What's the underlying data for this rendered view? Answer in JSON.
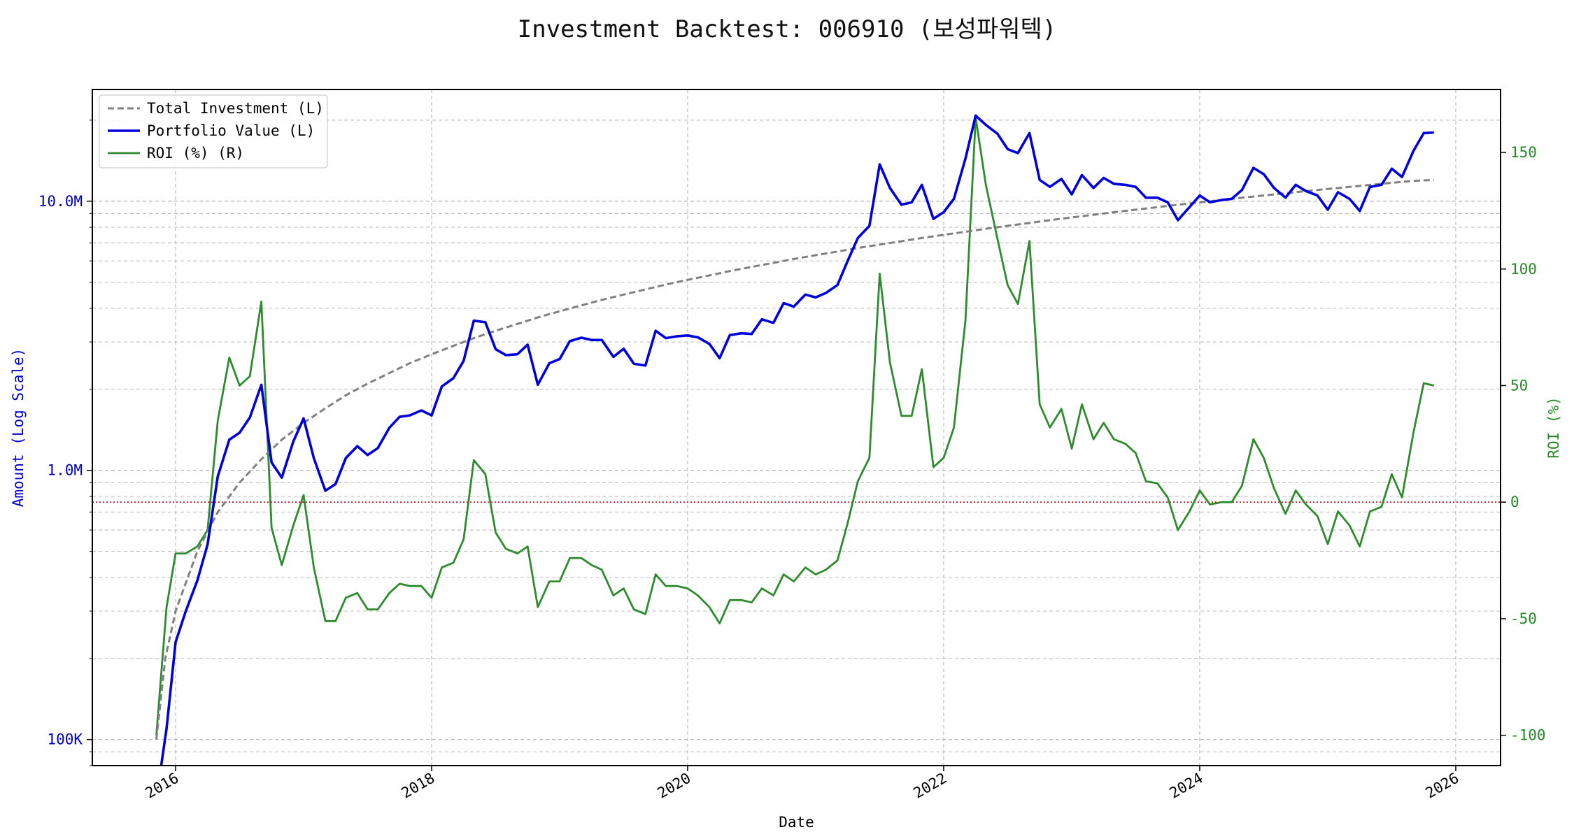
{
  "chart_data": {
    "type": "line",
    "title": "Investment Backtest: 006910 (보성파워텍)",
    "xlabel": "Date",
    "ylabel_left": "Amount (Log Scale)",
    "ylabel_right": "ROI (%)",
    "x_ticks": [
      "2016",
      "2018",
      "2020",
      "2022",
      "2024",
      "2026"
    ],
    "y_left_ticks": [
      {
        "value": 100000,
        "label": "100K"
      },
      {
        "value": 1000000,
        "label": "1.0M"
      },
      {
        "value": 10000000,
        "label": "10.0M"
      }
    ],
    "y_right_ticks": [
      -100,
      -50,
      0,
      50,
      100,
      150
    ],
    "y_left_scale": "log",
    "ylim_left": [
      80000,
      26000000
    ],
    "ylim_right": [
      -113,
      177
    ],
    "xlim": [
      2015.35,
      2026.35
    ],
    "grid": true,
    "legend_position": "top-left",
    "legend": [
      {
        "label": "Total Investment (L)",
        "color": "#808080",
        "style": "dashed"
      },
      {
        "label": "Portfolio Value (L)",
        "color": "#0000dd",
        "style": "solid"
      },
      {
        "label": "ROI (%) (R)",
        "color": "#2e8b2e",
        "style": "solid"
      }
    ],
    "reference_line": {
      "axis": "right",
      "value": 0,
      "color": "#cc0000",
      "style": "dotted"
    },
    "colors": {
      "left_axis": "#0000cc",
      "right_axis": "#228b22"
    },
    "series": [
      {
        "name": "Total Investment (L)",
        "axis": "left",
        "x": [
          2015.85,
          2015.92,
          2016.0,
          2016.17,
          2016.33,
          2016.5,
          2016.67,
          2016.83,
          2017.0,
          2017.17,
          2017.33,
          2017.5,
          2017.67,
          2017.83,
          2018.0,
          2018.17,
          2018.33,
          2018.5,
          2018.67,
          2018.83,
          2019.0,
          2019.17,
          2019.33,
          2019.5,
          2019.67,
          2019.83,
          2020.0,
          2020.17,
          2020.33,
          2020.5,
          2020.67,
          2020.83,
          2021.0,
          2021.17,
          2021.33,
          2021.5,
          2021.67,
          2021.83,
          2022.0,
          2022.17,
          2022.33,
          2022.5,
          2022.67,
          2022.83,
          2023.0,
          2023.17,
          2023.33,
          2023.5,
          2023.67,
          2023.83,
          2024.0,
          2024.17,
          2024.33,
          2024.5,
          2024.67,
          2024.83,
          2025.0,
          2025.17,
          2025.33,
          2025.5,
          2025.67,
          2025.83
        ],
        "values": [
          100000,
          200000,
          300000,
          500000,
          700000,
          900000,
          1100000,
          1300000,
          1500000,
          1700000,
          1900000,
          2100000,
          2300000,
          2500000,
          2700000,
          2900000,
          3100000,
          3300000,
          3500000,
          3700000,
          3900000,
          4100000,
          4300000,
          4500000,
          4700000,
          4900000,
          5100000,
          5300000,
          5500000,
          5700000,
          5900000,
          6100000,
          6300000,
          6500000,
          6700000,
          6900000,
          7100000,
          7300000,
          7500000,
          7700000,
          7900000,
          8100000,
          8300000,
          8500000,
          8700000,
          8900000,
          9100000,
          9300000,
          9500000,
          9700000,
          9900000,
          10100000,
          10300000,
          10500000,
          10700000,
          10900000,
          11100000,
          11300000,
          11500000,
          11700000,
          11900000,
          12000000
        ]
      },
      {
        "name": "Portfolio Value (L)",
        "axis": "left",
        "x": [
          2015.85,
          2015.93,
          2016.0,
          2016.08,
          2016.17,
          2016.25,
          2016.33,
          2016.42,
          2016.5,
          2016.58,
          2016.67,
          2016.75,
          2016.83,
          2016.92,
          2017.0,
          2017.08,
          2017.17,
          2017.25,
          2017.33,
          2017.42,
          2017.5,
          2017.58,
          2017.67,
          2017.75,
          2017.83,
          2017.92,
          2018.0,
          2018.08,
          2018.17,
          2018.25,
          2018.33,
          2018.42,
          2018.5,
          2018.58,
          2018.67,
          2018.75,
          2018.83,
          2018.92,
          2019.0,
          2019.08,
          2019.17,
          2019.25,
          2019.33,
          2019.42,
          2019.5,
          2019.58,
          2019.67,
          2019.75,
          2019.83,
          2019.92,
          2020.0,
          2020.08,
          2020.17,
          2020.25,
          2020.33,
          2020.42,
          2020.5,
          2020.58,
          2020.67,
          2020.75,
          2020.83,
          2020.92,
          2021.0,
          2021.08,
          2021.17,
          2021.25,
          2021.33,
          2021.42,
          2021.5,
          2021.58,
          2021.67,
          2021.75,
          2021.83,
          2021.92,
          2022.0,
          2022.08,
          2022.17,
          2022.25,
          2022.33,
          2022.42,
          2022.5,
          2022.58,
          2022.67,
          2022.75,
          2022.83,
          2022.92,
          2023.0,
          2023.08,
          2023.17,
          2023.25,
          2023.33,
          2023.42,
          2023.5,
          2023.58,
          2023.67,
          2023.75,
          2023.83,
          2023.92,
          2024.0,
          2024.08,
          2024.17,
          2024.25,
          2024.33,
          2024.42,
          2024.5,
          2024.58,
          2024.67,
          2024.75,
          2024.83,
          2024.92,
          2025.0,
          2025.08,
          2025.17,
          2025.25,
          2025.33,
          2025.42,
          2025.5,
          2025.58,
          2025.67,
          2025.75,
          2025.83
        ],
        "values": [
          60000,
          110000,
          230000,
          300000,
          390000,
          530000,
          950000,
          1300000,
          1380000,
          1570000,
          2080000,
          1070000,
          940000,
          1280000,
          1560000,
          1110000,
          840000,
          890000,
          1110000,
          1230000,
          1140000,
          1210000,
          1440000,
          1580000,
          1600000,
          1670000,
          1600000,
          2050000,
          2200000,
          2550000,
          3600000,
          3550000,
          2820000,
          2680000,
          2700000,
          2930000,
          2080000,
          2500000,
          2590000,
          3020000,
          3110000,
          3050000,
          3050000,
          2640000,
          2830000,
          2490000,
          2450000,
          3300000,
          3100000,
          3150000,
          3170000,
          3120000,
          2950000,
          2610000,
          3180000,
          3230000,
          3210000,
          3640000,
          3530000,
          4180000,
          4060000,
          4500000,
          4390000,
          4560000,
          4880000,
          6000000,
          7300000,
          8100000,
          13700000,
          11200000,
          9700000,
          9900000,
          11500000,
          8600000,
          9100000,
          10200000,
          14400000,
          20800000,
          19200000,
          17800000,
          15600000,
          15100000,
          17900000,
          12000000,
          11300000,
          12100000,
          10600000,
          12500000,
          11200000,
          12200000,
          11600000,
          11500000,
          11300000,
          10300000,
          10300000,
          9900000,
          8500000,
          9500000,
          10500000,
          9900000,
          10100000,
          10200000,
          11000000,
          13300000,
          12600000,
          11200000,
          10300000,
          11500000,
          10900000,
          10500000,
          9300000,
          10800000,
          10200000,
          9200000,
          11300000,
          11500000,
          13200000,
          12300000,
          15400000,
          17900000,
          18000000
        ]
      },
      {
        "name": "ROI (%) (R)",
        "axis": "right",
        "x": [
          2015.85,
          2015.93,
          2016.0,
          2016.08,
          2016.17,
          2016.25,
          2016.33,
          2016.42,
          2016.5,
          2016.58,
          2016.67,
          2016.75,
          2016.83,
          2016.92,
          2017.0,
          2017.08,
          2017.17,
          2017.25,
          2017.33,
          2017.42,
          2017.5,
          2017.58,
          2017.67,
          2017.75,
          2017.83,
          2017.92,
          2018.0,
          2018.08,
          2018.17,
          2018.25,
          2018.33,
          2018.42,
          2018.5,
          2018.58,
          2018.67,
          2018.75,
          2018.83,
          2018.92,
          2019.0,
          2019.08,
          2019.17,
          2019.25,
          2019.33,
          2019.42,
          2019.5,
          2019.58,
          2019.67,
          2019.75,
          2019.83,
          2019.92,
          2020.0,
          2020.08,
          2020.17,
          2020.25,
          2020.33,
          2020.42,
          2020.5,
          2020.58,
          2020.67,
          2020.75,
          2020.83,
          2020.92,
          2021.0,
          2021.08,
          2021.17,
          2021.25,
          2021.33,
          2021.42,
          2021.5,
          2021.58,
          2021.67,
          2021.75,
          2021.83,
          2021.92,
          2022.0,
          2022.08,
          2022.17,
          2022.25,
          2022.33,
          2022.42,
          2022.5,
          2022.58,
          2022.67,
          2022.75,
          2022.83,
          2022.92,
          2023.0,
          2023.08,
          2023.17,
          2023.25,
          2023.33,
          2023.42,
          2023.5,
          2023.58,
          2023.67,
          2023.75,
          2023.83,
          2023.92,
          2024.0,
          2024.08,
          2024.17,
          2024.25,
          2024.33,
          2024.42,
          2024.5,
          2024.58,
          2024.67,
          2024.75,
          2024.83,
          2024.92,
          2025.0,
          2025.08,
          2025.17,
          2025.25,
          2025.33,
          2025.42,
          2025.5,
          2025.58,
          2025.67,
          2025.75,
          2025.83
        ],
        "values": [
          -100,
          -45,
          -22,
          -22,
          -19,
          -12,
          35,
          62,
          50,
          54,
          86,
          -11,
          -27,
          -10,
          3,
          -28,
          -51,
          -51,
          -41,
          -39,
          -46,
          -46,
          -39,
          -35,
          -36,
          -36,
          -41,
          -28,
          -26,
          -16,
          18,
          12,
          -13,
          -20,
          -22,
          -19,
          -45,
          -34,
          -34,
          -24,
          -24,
          -27,
          -29,
          -40,
          -37,
          -46,
          -48,
          -31,
          -36,
          -36,
          -37,
          -40,
          -45,
          -52,
          -42,
          -42,
          -43,
          -37,
          -40,
          -31,
          -34,
          -28,
          -31,
          -29,
          -25,
          -9,
          9,
          19,
          98,
          60,
          37,
          37,
          57,
          15,
          19,
          32,
          78,
          165,
          136,
          113,
          93,
          85,
          112,
          42,
          32,
          40,
          23,
          42,
          27,
          34,
          27,
          25,
          21,
          9,
          8,
          2,
          -12,
          -4,
          5,
          -1,
          0,
          0,
          7,
          27,
          19,
          6,
          -5,
          5,
          -1,
          -6,
          -18,
          -4,
          -10,
          -19,
          -4,
          -2,
          12,
          2,
          30,
          51,
          50
        ]
      }
    ]
  }
}
